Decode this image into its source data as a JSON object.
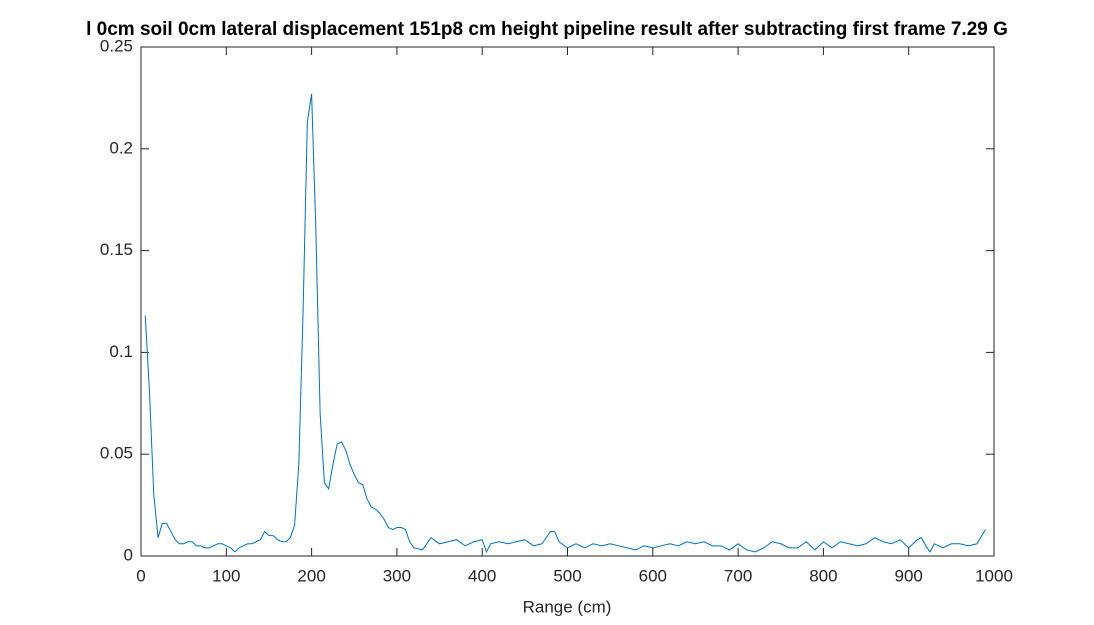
{
  "chart_data": {
    "type": "line",
    "title": "l 0cm soil 0cm lateral displacement 151p8 cm height pipeline result after subtracting first frame 7.29 G",
    "x_label": "Range (cm)",
    "color": "#0072bd",
    "x": [
      5,
      10,
      15,
      20,
      25,
      30,
      35,
      40,
      45,
      50,
      55,
      60,
      65,
      70,
      75,
      80,
      85,
      90,
      95,
      100,
      105,
      110,
      115,
      120,
      125,
      130,
      135,
      140,
      145,
      150,
      155,
      160,
      165,
      170,
      175,
      180,
      185,
      190,
      195,
      200,
      205,
      210,
      215,
      220,
      225,
      230,
      235,
      240,
      245,
      250,
      255,
      260,
      265,
      270,
      275,
      280,
      285,
      290,
      295,
      300,
      305,
      310,
      315,
      320,
      330,
      340,
      350,
      360,
      370,
      380,
      390,
      400,
      405,
      410,
      420,
      430,
      440,
      450,
      460,
      470,
      480,
      485,
      490,
      500,
      510,
      520,
      530,
      540,
      550,
      560,
      570,
      580,
      590,
      600,
      610,
      620,
      630,
      640,
      650,
      660,
      670,
      680,
      690,
      700,
      710,
      720,
      730,
      740,
      750,
      760,
      770,
      780,
      790,
      800,
      810,
      820,
      830,
      840,
      850,
      860,
      870,
      880,
      890,
      900,
      910,
      915,
      920,
      925,
      930,
      940,
      950,
      960,
      970,
      980,
      990
    ],
    "values": [
      0.118,
      0.08,
      0.03,
      0.009,
      0.016,
      0.016,
      0.012,
      0.008,
      0.006,
      0.006,
      0.007,
      0.007,
      0.005,
      0.005,
      0.004,
      0.004,
      0.005,
      0.006,
      0.006,
      0.005,
      0.004,
      0.002,
      0.004,
      0.005,
      0.006,
      0.006,
      0.007,
      0.008,
      0.012,
      0.01,
      0.01,
      0.008,
      0.007,
      0.007,
      0.009,
      0.015,
      0.045,
      0.12,
      0.213,
      0.227,
      0.16,
      0.07,
      0.036,
      0.033,
      0.045,
      0.055,
      0.056,
      0.052,
      0.045,
      0.04,
      0.036,
      0.035,
      0.028,
      0.024,
      0.023,
      0.021,
      0.018,
      0.014,
      0.013,
      0.014,
      0.014,
      0.013,
      0.007,
      0.004,
      0.003,
      0.009,
      0.006,
      0.007,
      0.008,
      0.005,
      0.007,
      0.008,
      0.002,
      0.006,
      0.007,
      0.006,
      0.007,
      0.008,
      0.005,
      0.006,
      0.012,
      0.012,
      0.007,
      0.004,
      0.006,
      0.004,
      0.006,
      0.005,
      0.006,
      0.005,
      0.004,
      0.003,
      0.005,
      0.004,
      0.005,
      0.006,
      0.005,
      0.007,
      0.006,
      0.007,
      0.005,
      0.005,
      0.003,
      0.006,
      0.003,
      0.002,
      0.004,
      0.007,
      0.006,
      0.004,
      0.004,
      0.007,
      0.003,
      0.007,
      0.004,
      0.007,
      0.006,
      0.005,
      0.006,
      0.009,
      0.007,
      0.006,
      0.008,
      0.004,
      0.008,
      0.009,
      0.005,
      0.002,
      0.006,
      0.004,
      0.006,
      0.006,
      0.005,
      0.006,
      0.013
    ],
    "xlim": [
      0,
      1000
    ],
    "xticks": [
      0,
      100,
      200,
      300,
      400,
      500,
      600,
      700,
      800,
      900,
      1000
    ],
    "ylim": [
      0,
      0.25
    ],
    "yticks": [
      0,
      0.05,
      0.1,
      0.15,
      0.2,
      0.25
    ]
  }
}
